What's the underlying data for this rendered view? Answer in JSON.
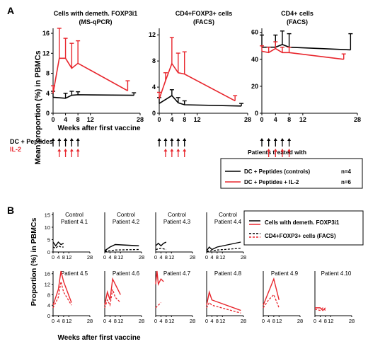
{
  "colors": {
    "control": "#000000",
    "il2": "#e8262d"
  },
  "panel_a": {
    "label": "A",
    "ylabel": "Mean proportion (%) in PBMCs",
    "xlabel": "Weeks after first vaccine",
    "treatment_label_dc": "DC + Peptides",
    "treatment_label_il2": "IL-2",
    "legend": {
      "title": "Patients treated with",
      "rows": [
        {
          "label": "DC + Peptides (controls)",
          "n": "n=4",
          "color": "#000000"
        },
        {
          "label": "DC + Peptides + IL-2",
          "n": "n=6",
          "color": "#e8262d"
        }
      ]
    }
  },
  "panel_b": {
    "label": "B",
    "ylabel": "Proportion (%) in PBMCs",
    "xlabel": "Weeks after first vaccine",
    "legend": {
      "solid_label": "Cells with demeth. FOXP3i1",
      "dashed_label": "CD4+FOXP3+ cells (FACS)"
    }
  },
  "chart_data": [
    {
      "type": "line",
      "title": "Cells with demeth. FOXP3i1",
      "subtitle": "(MS-qPCR)",
      "xlabel": "Weeks after first vaccine",
      "ylabel": "Mean proportion (%) in PBMCs",
      "xlim": [
        0,
        28
      ],
      "ylim": [
        0,
        17
      ],
      "xticks": [
        "0",
        "4",
        "8",
        "12",
        "28"
      ],
      "yticks": [
        "0",
        "4",
        "8",
        "12",
        "16"
      ],
      "series": [
        {
          "name": "DC + Peptides (controls)",
          "color": "#000000",
          "x": [
            0,
            4,
            6,
            8,
            26
          ],
          "y": [
            3.2,
            3.0,
            3.6,
            3.7,
            3.6
          ],
          "err": [
            1.2,
            1.0,
            0.8,
            0.6,
            0.5
          ]
        },
        {
          "name": "DC + Peptides + IL-2",
          "color": "#e8262d",
          "x": [
            0,
            2,
            4,
            6,
            8,
            24
          ],
          "y": [
            4.0,
            11.0,
            11.0,
            9.0,
            10.0,
            4.5
          ],
          "err": [
            1.5,
            6.0,
            4.0,
            5.0,
            4.5,
            2.0
          ]
        }
      ],
      "vaccine_weeks": [
        0,
        2,
        4,
        6,
        8
      ]
    },
    {
      "type": "line",
      "title": "CD4+FOXP3+ cells",
      "subtitle": "(FACS)",
      "xlim": [
        0,
        28
      ],
      "ylim": [
        0,
        13
      ],
      "xticks": [
        "0",
        "4",
        "8",
        "12",
        "28"
      ],
      "yticks": [
        "0",
        "4",
        "8",
        "12"
      ],
      "series": [
        {
          "name": "DC + Peptides (controls)",
          "color": "#000000",
          "x": [
            0,
            4,
            6,
            8,
            26
          ],
          "y": [
            1.5,
            2.7,
            1.6,
            1.3,
            1.1
          ],
          "err": [
            0.9,
            0.9,
            0.8,
            0.6,
            0.4
          ]
        },
        {
          "name": "DC + Peptides + IL-2",
          "color": "#e8262d",
          "x": [
            0,
            2,
            4,
            6,
            8,
            24
          ],
          "y": [
            2.2,
            5.0,
            7.6,
            6.2,
            6.0,
            1.9
          ],
          "err": [
            1.0,
            1.2,
            4.0,
            3.0,
            3.4,
            0.8
          ]
        }
      ],
      "vaccine_weeks": [
        0,
        2,
        4,
        6,
        8
      ]
    },
    {
      "type": "line",
      "title": "CD4+ cells",
      "subtitle": "(FACS)",
      "xlim": [
        0,
        28
      ],
      "ylim": [
        0,
        63
      ],
      "xticks": [
        "0",
        "4",
        "8",
        "12",
        "28"
      ],
      "yticks": [
        "0",
        "20",
        "40",
        "60"
      ],
      "series": [
        {
          "name": "DC + Peptides (controls)",
          "color": "#000000",
          "x": [
            0,
            4,
            6,
            8,
            26
          ],
          "y": [
            49,
            49,
            51,
            49,
            47
          ],
          "err": [
            9,
            9,
            10,
            10,
            12
          ]
        },
        {
          "name": "DC + Peptides + IL-2",
          "color": "#e8262d",
          "x": [
            0,
            2,
            4,
            6,
            8,
            24
          ],
          "y": [
            46,
            45,
            48,
            45,
            45,
            40
          ],
          "err": [
            4,
            4,
            5,
            4,
            4,
            4
          ]
        }
      ],
      "vaccine_weeks": [
        0,
        2,
        4,
        6,
        8
      ]
    },
    {
      "type": "line",
      "panel": "B",
      "xticks": [
        "0",
        "4",
        "8",
        "12",
        "28"
      ],
      "xlim": [
        0,
        28
      ],
      "top_row_yticks": [
        "0",
        "5",
        "10",
        "15"
      ],
      "bottom_row_yticks": [
        "0",
        "4",
        "8",
        "12",
        "16"
      ],
      "patients": [
        {
          "name": "Patient 4.1",
          "group": "Control",
          "ylim": [
            0,
            16
          ],
          "color": "#000000",
          "solid": {
            "x": [
              0,
              2,
              4,
              6,
              8
            ],
            "y": [
              4,
              2.5,
              4,
              3,
              3.5
            ]
          },
          "dashed": {
            "x": [
              0,
              2,
              4,
              6,
              8
            ],
            "y": [
              2,
              1.5,
              2.5,
              2,
              2
            ]
          }
        },
        {
          "name": "Patient 4.2",
          "group": "Control",
          "ylim": [
            0,
            16
          ],
          "color": "#000000",
          "solid": {
            "x": [
              0,
              4,
              8,
              26
            ],
            "y": [
              0.5,
              2,
              3,
              2.5
            ]
          },
          "dashed": {
            "x": [
              0,
              4,
              8,
              26
            ],
            "y": [
              0.3,
              0.5,
              0.8,
              1
            ]
          }
        },
        {
          "name": "Patient 4.3",
          "group": "Control",
          "ylim": [
            0,
            16
          ],
          "color": "#000000",
          "solid": {
            "x": [
              0,
              2,
              4,
              6,
              8
            ],
            "y": [
              2.5,
              3.5,
              2.5,
              3.5,
              4
            ]
          },
          "dashed": {
            "x": [
              0,
              4,
              8
            ],
            "y": [
              1,
              1.5,
              1
            ]
          }
        },
        {
          "name": "Patient 4.4",
          "group": "Control",
          "ylim": [
            0,
            16
          ],
          "color": "#000000",
          "solid": {
            "x": [
              0,
              2,
              4,
              8,
              26
            ],
            "y": [
              0.5,
              2,
              1,
              2,
              4
            ]
          },
          "dashed": {
            "x": [
              0,
              4,
              8,
              26
            ],
            "y": [
              0.3,
              0.5,
              0.8,
              1.5
            ]
          }
        },
        {
          "name": "Patient 4.5",
          "group": "",
          "ylim": [
            0,
            17
          ],
          "color": "#e8262d",
          "solid": {
            "x": [
              0,
              4,
              6,
              8,
              14
            ],
            "y": [
              4,
              10,
              17,
              13,
              5
            ]
          },
          "dashed": {
            "x": [
              0,
              4,
              6,
              8,
              14
            ],
            "y": [
              3,
              7,
              13,
              9,
              4
            ]
          }
        },
        {
          "name": "Patient 4.6",
          "group": "",
          "ylim": [
            0,
            17
          ],
          "color": "#e8262d",
          "solid": {
            "x": [
              0,
              2,
              4,
              6,
              8,
              12
            ],
            "y": [
              4,
              9,
              6,
              14,
              12,
              8
            ]
          },
          "dashed": {
            "x": [
              0,
              2,
              4,
              6,
              8,
              12
            ],
            "y": [
              3,
              6,
              4,
              10,
              7,
              5
            ]
          }
        },
        {
          "name": "Patient 4.7",
          "group": "",
          "ylim": [
            0,
            17
          ],
          "color": "#e8262d",
          "solid": {
            "x": [
              0,
              1,
              2,
              4,
              6
            ],
            "y": [
              12,
              17,
              12,
              14,
              13
            ]
          },
          "dashed": {
            "x": [
              0,
              2,
              4
            ],
            "y": [
              3,
              4,
              5
            ]
          }
        },
        {
          "name": "Patient 4.8",
          "group": "",
          "ylim": [
            0,
            17
          ],
          "color": "#e8262d",
          "solid": {
            "x": [
              0,
              2,
              4,
              26
            ],
            "y": [
              4,
              9,
              6,
              2
            ]
          },
          "dashed": {
            "x": [
              0,
              2,
              4,
              26
            ],
            "y": [
              3,
              5,
              4,
              1
            ]
          }
        },
        {
          "name": "Patient 4.9",
          "group": "",
          "ylim": [
            0,
            17
          ],
          "color": "#e8262d",
          "solid": {
            "x": [
              0,
              4,
              8,
              12
            ],
            "y": [
              4,
              9,
              14,
              6
            ]
          },
          "dashed": {
            "x": [
              0,
              4,
              8,
              12
            ],
            "y": [
              3,
              6,
              8,
              3
            ]
          }
        },
        {
          "name": "Patient 4.10",
          "group": "",
          "ylim": [
            0,
            17
          ],
          "color": "#e8262d",
          "solid": {
            "x": [
              0,
              4,
              6,
              8
            ],
            "y": [
              3,
              3,
              2,
              3
            ]
          },
          "dashed": {
            "x": [
              0,
              4,
              6,
              8
            ],
            "y": [
              2.5,
              2,
              3,
              2
            ]
          }
        }
      ]
    }
  ]
}
